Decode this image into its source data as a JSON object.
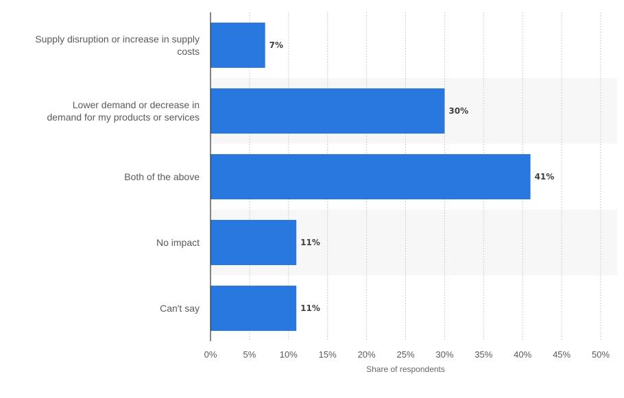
{
  "chart_data": {
    "type": "bar",
    "orientation": "horizontal",
    "categories": [
      "Supply disruption or increase in supply costs",
      "Lower demand or decrease in demand for my products or services",
      "Both of the above",
      "No impact",
      "Can't say"
    ],
    "category_lines": [
      [
        "Supply disruption or increase in supply",
        "costs"
      ],
      [
        "Lower demand or decrease in",
        "demand for my products or services"
      ],
      [
        "Both of the above"
      ],
      [
        "No impact"
      ],
      [
        "Can't say"
      ]
    ],
    "values": [
      7,
      30,
      41,
      11,
      11
    ],
    "data_labels": [
      "7%",
      "30%",
      "41%",
      "11%",
      "11%"
    ],
    "xlim": [
      0,
      50
    ],
    "x_ticks": [
      0,
      5,
      10,
      15,
      20,
      25,
      30,
      35,
      40,
      45,
      50
    ],
    "x_tick_labels": [
      "0%",
      "5%",
      "10%",
      "15%",
      "20%",
      "25%",
      "30%",
      "35%",
      "40%",
      "45%",
      "50%"
    ],
    "xlabel": "Share of respondents",
    "title": "",
    "grid": "vertical dotted",
    "legend": "none",
    "colors": {
      "bar": "#2878e0",
      "band": "#f7f7f7",
      "grid": "#cccccc",
      "axis": "#333333"
    }
  }
}
